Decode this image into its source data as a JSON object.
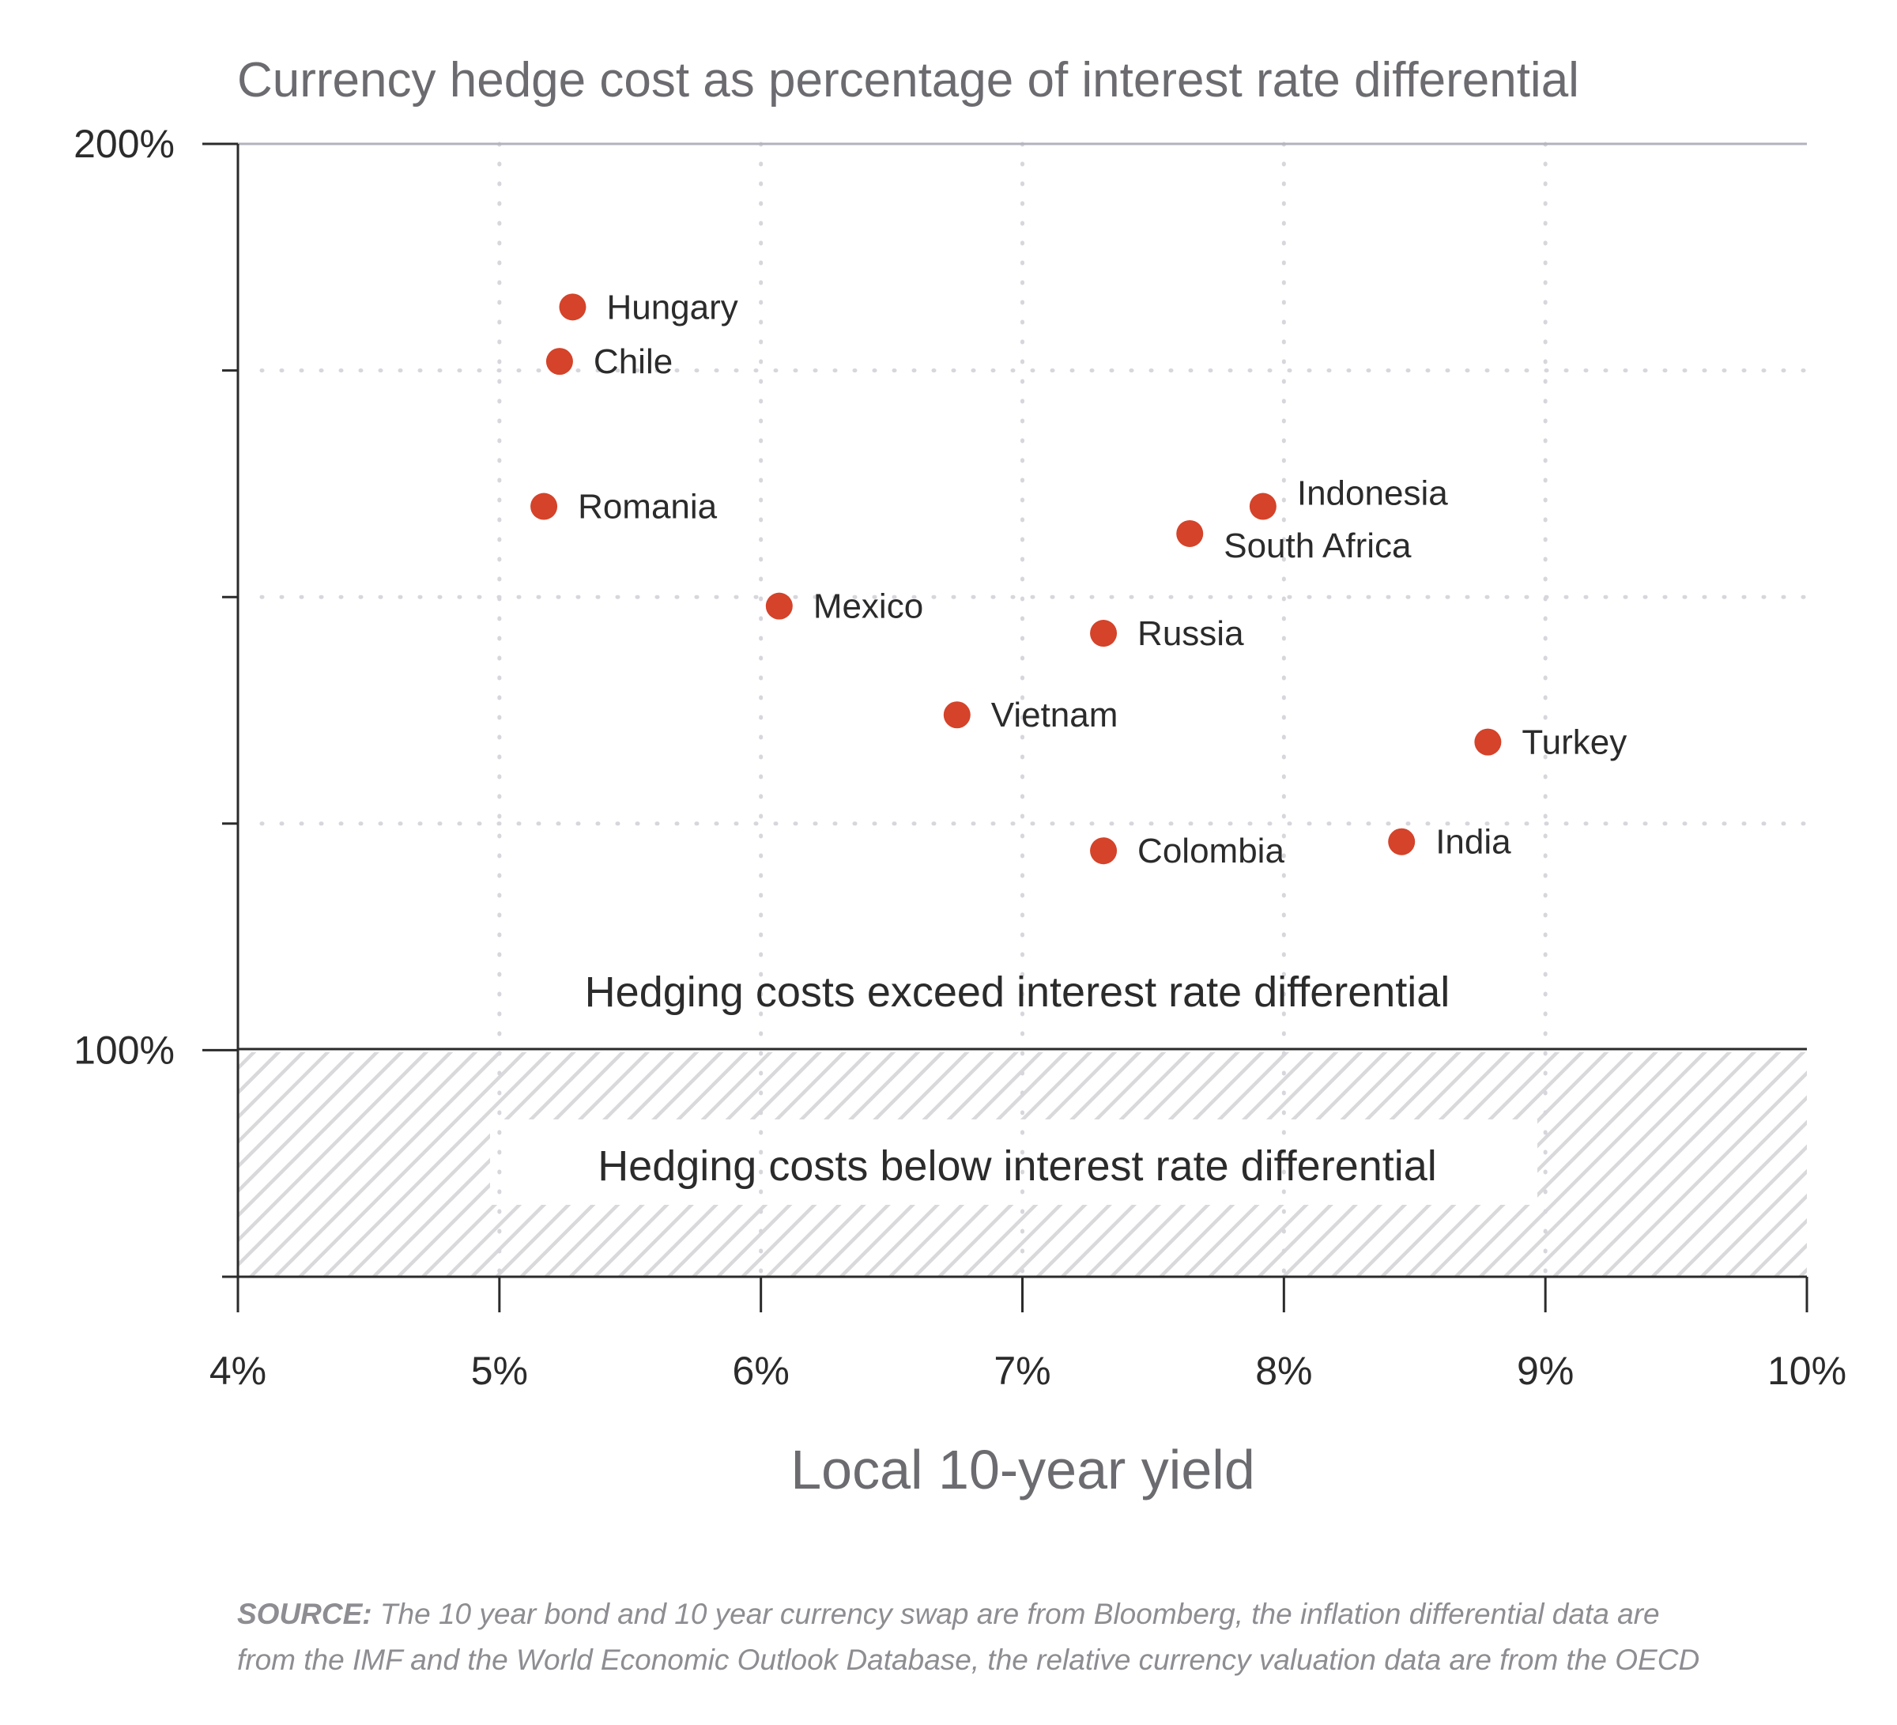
{
  "chart_data": {
    "type": "scatter",
    "title": "Currency hedge cost as percentage of interest rate differential",
    "xlabel": "Local 10-year yield",
    "ylabel": "",
    "xlim": [
      4,
      10
    ],
    "ylim": [
      75,
      200
    ],
    "x_ticks": [
      4,
      5,
      6,
      7,
      8,
      9,
      10
    ],
    "x_tick_labels": [
      "4%",
      "5%",
      "6%",
      "7%",
      "8%",
      "9%",
      "10%"
    ],
    "y_ticks": [
      75,
      100,
      125,
      150,
      175,
      200
    ],
    "y_tick_labels": [
      {
        "value": 200,
        "label": "200%"
      },
      {
        "value": 100,
        "label": "100%"
      }
    ],
    "grid": true,
    "points": [
      {
        "label": "Hungary",
        "x": 5.28,
        "y": 182
      },
      {
        "label": "Chile",
        "x": 5.23,
        "y": 176
      },
      {
        "label": "Romania",
        "x": 5.17,
        "y": 160
      },
      {
        "label": "Indonesia",
        "x": 7.92,
        "y": 160
      },
      {
        "label": "South Africa",
        "x": 7.64,
        "y": 157
      },
      {
        "label": "Mexico",
        "x": 6.07,
        "y": 149
      },
      {
        "label": "Russia",
        "x": 7.31,
        "y": 146
      },
      {
        "label": "Vietnam",
        "x": 6.75,
        "y": 137
      },
      {
        "label": "Turkey",
        "x": 8.78,
        "y": 134
      },
      {
        "label": "Colombia",
        "x": 7.31,
        "y": 122
      },
      {
        "label": "India",
        "x": 8.45,
        "y": 123
      }
    ],
    "point_color": "#d4432a",
    "regions": {
      "above": "Hedging costs exceed interest rate differential",
      "below": "Hedging costs below interest rate differential"
    }
  },
  "source": {
    "label": "SOURCE:",
    "line1": "The 10 year bond and 10 year currency swap are from Bloomberg, the inflation differential data are",
    "line2": "from the IMF and the World Economic Outlook Database, the relative currency valuation data are from the OECD"
  }
}
